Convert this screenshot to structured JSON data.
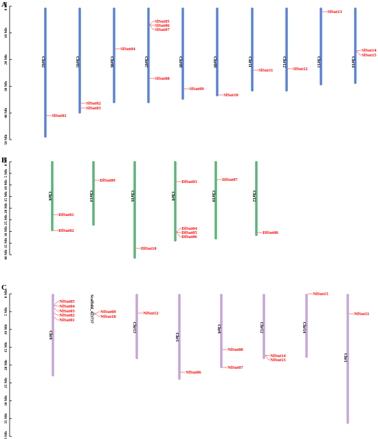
{
  "panels": [
    {
      "label": "A",
      "bar_color": "#5a82d8",
      "axis_ticks": [
        "0 Mb",
        "10 Mb",
        "20 Mb",
        "30 Mb",
        "40 Mb",
        "50 Mb"
      ],
      "chromosomes": [
        {
          "name": "Chr02",
          "genes": [
            "SlSut01"
          ]
        },
        {
          "name": "Chr05",
          "genes": [
            "SlSut02",
            "SlSut03"
          ]
        },
        {
          "name": "Chr06",
          "genes": [
            "SlSut04"
          ]
        },
        {
          "name": "Chr07",
          "genes": [
            "SlSut05",
            "SlSut06",
            "SlSut07",
            "SlSut08"
          ]
        },
        {
          "name": "Chr08",
          "genes": [
            "SlSut09"
          ]
        },
        {
          "name": "Chr09",
          "genes": [
            "SlSut10"
          ]
        },
        {
          "name": "Chr11",
          "genes": [
            "SlSut11"
          ]
        },
        {
          "name": "Chr12",
          "genes": [
            "SlSut12"
          ]
        },
        {
          "name": "Chr13",
          "genes": [
            "SlSut13"
          ]
        },
        {
          "name": "Chr14",
          "genes": [
            "SlSut14",
            "SlSut15"
          ]
        }
      ]
    },
    {
      "label": "B",
      "bar_color": "#5cb37a",
      "axis_ticks": [
        "0 Mb",
        "5 Mb",
        "10 Mb",
        "15 Mb",
        "20 Mb",
        "25 Mb",
        "30 Mb",
        "35 Mb",
        "40 Mb"
      ],
      "chromosomes": [
        {
          "name": "Chr6",
          "genes": [
            "DlSut01",
            "DlSut02"
          ]
        },
        {
          "name": "Chr14",
          "genes": [
            "DlSut09"
          ]
        },
        {
          "name": "Chr16",
          "genes": [
            "DlSut10"
          ]
        },
        {
          "name": "Chr9",
          "genes": [
            "DlSut03",
            "DlSut04",
            "DlSut05",
            "DlSut06"
          ]
        },
        {
          "name": "Chr10",
          "genes": [
            "DlSut07"
          ]
        },
        {
          "name": "Chr12",
          "genes": [
            "DlSut08"
          ]
        }
      ]
    },
    {
      "label": "C",
      "bar_color": "#c3a6d8",
      "axis_ticks": [
        "0 Mb",
        "5 Mb",
        "10 Mb",
        "15 Mb",
        "20 Mb",
        "25 Mb",
        "30 Mb",
        "35 Mb",
        "40 Mb"
      ],
      "chromosomes": [
        {
          "name": "Chr6",
          "genes": [
            "NlSut05",
            "NlSut04",
            "NlSut03",
            "NlSut02",
            "NlSut01"
          ]
        },
        {
          "name": "Scaffold_423737",
          "genes": [
            "NlSut09",
            "NlSut10"
          ]
        },
        {
          "name": "Chr13",
          "genes": [
            "NlSut12"
          ]
        },
        {
          "name": "Chr5",
          "genes": [
            "NlSut06"
          ]
        },
        {
          "name": "Chr8",
          "genes": [
            "NlSut08",
            "NlSut07"
          ]
        },
        {
          "name": "Chr12",
          "genes": [
            "NlSut14",
            "NlSut13"
          ]
        },
        {
          "name": "Chr14",
          "genes": [
            "NlSut15"
          ]
        },
        {
          "name": "Chr1",
          "genes": [
            "NlSut11"
          ]
        }
      ]
    }
  ]
}
